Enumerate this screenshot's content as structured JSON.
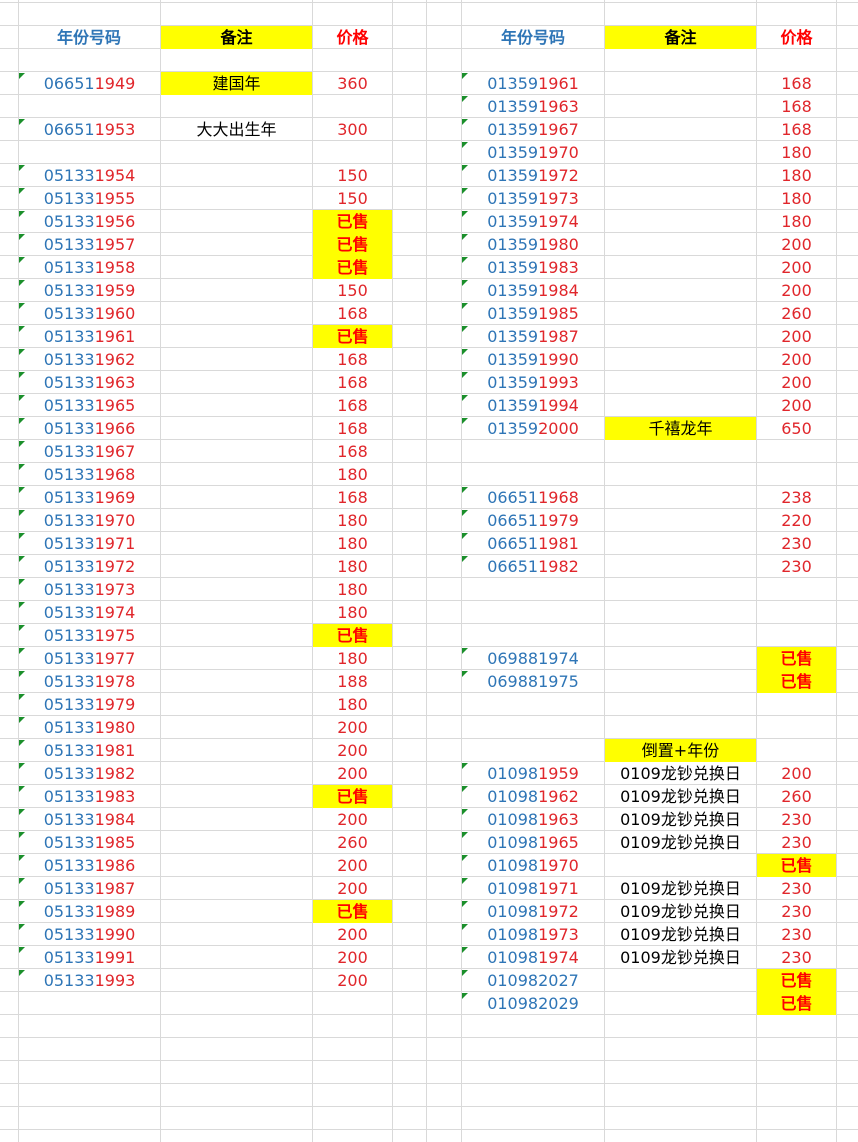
{
  "headers": {
    "left": {
      "number": "年份号码",
      "note": "备注",
      "price": "价格"
    },
    "right": {
      "number": "年份号码",
      "note": "备注",
      "price": "价格"
    }
  },
  "colors": {
    "prefix": "#2e75b6",
    "year": "#e0262b",
    "highlight": "#ffff00",
    "sold": "#ff0000",
    "grid": "#d9d9d9",
    "marker": "#1b8f2b"
  },
  "left_rows": [
    {
      "row": 4,
      "pre": "06651",
      "yr": "1949",
      "note": "建国年",
      "note_hl": true,
      "price": "360"
    },
    {
      "row": 6,
      "pre": "06651",
      "yr": "1953",
      "note": "大大出生年",
      "price": "300"
    },
    {
      "row": 8,
      "pre": "05133",
      "yr": "1954",
      "price": "150"
    },
    {
      "row": 9,
      "pre": "05133",
      "yr": "1955",
      "price": "150"
    },
    {
      "row": 10,
      "pre": "05133",
      "yr": "1956",
      "price": "已售",
      "sold": true
    },
    {
      "row": 11,
      "pre": "05133",
      "yr": "1957",
      "price": "已售",
      "sold": true
    },
    {
      "row": 12,
      "pre": "05133",
      "yr": "1958",
      "price": "已售",
      "sold": true
    },
    {
      "row": 13,
      "pre": "05133",
      "yr": "1959",
      "price": "150"
    },
    {
      "row": 14,
      "pre": "05133",
      "yr": "1960",
      "price": "168"
    },
    {
      "row": 15,
      "pre": "05133",
      "yr": "1961",
      "price": "已售",
      "sold": true
    },
    {
      "row": 16,
      "pre": "05133",
      "yr": "1962",
      "price": "168"
    },
    {
      "row": 17,
      "pre": "05133",
      "yr": "1963",
      "price": "168"
    },
    {
      "row": 18,
      "pre": "05133",
      "yr": "1965",
      "price": "168"
    },
    {
      "row": 19,
      "pre": "05133",
      "yr": "1966",
      "price": "168"
    },
    {
      "row": 20,
      "pre": "05133",
      "yr": "1967",
      "price": "168"
    },
    {
      "row": 21,
      "pre": "05133",
      "yr": "1968",
      "price": "180"
    },
    {
      "row": 22,
      "pre": "05133",
      "yr": "1969",
      "price": "168"
    },
    {
      "row": 23,
      "pre": "05133",
      "yr": "1970",
      "price": "180"
    },
    {
      "row": 24,
      "pre": "05133",
      "yr": "1971",
      "price": "180"
    },
    {
      "row": 25,
      "pre": "05133",
      "yr": "1972",
      "price": "180"
    },
    {
      "row": 26,
      "pre": "05133",
      "yr": "1973",
      "price": "180"
    },
    {
      "row": 27,
      "pre": "05133",
      "yr": "1974",
      "price": "180"
    },
    {
      "row": 28,
      "pre": "05133",
      "yr": "1975",
      "price": "已售",
      "sold": true
    },
    {
      "row": 29,
      "pre": "05133",
      "yr": "1977",
      "price": "180"
    },
    {
      "row": 30,
      "pre": "05133",
      "yr": "1978",
      "price": "188"
    },
    {
      "row": 31,
      "pre": "05133",
      "yr": "1979",
      "price": "180"
    },
    {
      "row": 32,
      "pre": "05133",
      "yr": "1980",
      "price": "200"
    },
    {
      "row": 33,
      "pre": "05133",
      "yr": "1981",
      "price": "200"
    },
    {
      "row": 34,
      "pre": "05133",
      "yr": "1982",
      "price": "200"
    },
    {
      "row": 35,
      "pre": "05133",
      "yr": "1983",
      "price": "已售",
      "sold": true
    },
    {
      "row": 36,
      "pre": "05133",
      "yr": "1984",
      "price": "200"
    },
    {
      "row": 37,
      "pre": "05133",
      "yr": "1985",
      "price": "260"
    },
    {
      "row": 38,
      "pre": "05133",
      "yr": "1986",
      "price": "200"
    },
    {
      "row": 39,
      "pre": "05133",
      "yr": "1987",
      "price": "200"
    },
    {
      "row": 40,
      "pre": "05133",
      "yr": "1989",
      "price": "已售",
      "sold": true
    },
    {
      "row": 41,
      "pre": "05133",
      "yr": "1990",
      "price": "200"
    },
    {
      "row": 42,
      "pre": "05133",
      "yr": "1991",
      "price": "200"
    },
    {
      "row": 43,
      "pre": "05133",
      "yr": "1993",
      "price": "200"
    }
  ],
  "right_rows": [
    {
      "row": 4,
      "pre": "01359",
      "yr": "1961",
      "price": "168"
    },
    {
      "row": 5,
      "pre": "01359",
      "yr": "1963",
      "price": "168"
    },
    {
      "row": 6,
      "pre": "01359",
      "yr": "1967",
      "price": "168"
    },
    {
      "row": 7,
      "pre": "01359",
      "yr": "1970",
      "price": "180"
    },
    {
      "row": 8,
      "pre": "01359",
      "yr": "1972",
      "price": "180"
    },
    {
      "row": 9,
      "pre": "01359",
      "yr": "1973",
      "price": "180"
    },
    {
      "row": 10,
      "pre": "01359",
      "yr": "1974",
      "price": "180"
    },
    {
      "row": 11,
      "pre": "01359",
      "yr": "1980",
      "price": "200"
    },
    {
      "row": 12,
      "pre": "01359",
      "yr": "1983",
      "price": "200"
    },
    {
      "row": 13,
      "pre": "01359",
      "yr": "1984",
      "price": "200"
    },
    {
      "row": 14,
      "pre": "01359",
      "yr": "1985",
      "price": "260"
    },
    {
      "row": 15,
      "pre": "01359",
      "yr": "1987",
      "price": "200"
    },
    {
      "row": 16,
      "pre": "01359",
      "yr": "1990",
      "price": "200"
    },
    {
      "row": 17,
      "pre": "01359",
      "yr": "1993",
      "price": "200"
    },
    {
      "row": 18,
      "pre": "01359",
      "yr": "1994",
      "price": "200"
    },
    {
      "row": 19,
      "pre": "01359",
      "yr": "2000",
      "note": "千禧龙年",
      "note_hl": true,
      "price": "650"
    },
    {
      "row": 22,
      "pre": "06651",
      "yr": "1968",
      "price": "238"
    },
    {
      "row": 23,
      "pre": "06651",
      "yr": "1979",
      "price": "220"
    },
    {
      "row": 24,
      "pre": "06651",
      "yr": "1981",
      "price": "230"
    },
    {
      "row": 25,
      "pre": "06651",
      "yr": "1982",
      "price": "230"
    },
    {
      "row": 29,
      "pre": "069881974",
      "yr": "",
      "price": "已售",
      "sold": true
    },
    {
      "row": 30,
      "pre": "069881975",
      "yr": "",
      "price": "已售",
      "sold": true
    },
    {
      "row": 33,
      "note": "倒置+年份",
      "note_hl": true,
      "nomarker": true
    },
    {
      "row": 34,
      "pre": "01098",
      "yr": "1959",
      "note": "0109龙钞兑换日",
      "price": "200"
    },
    {
      "row": 35,
      "pre": "01098",
      "yr": "1962",
      "note": "0109龙钞兑换日",
      "price": "260"
    },
    {
      "row": 36,
      "pre": "01098",
      "yr": "1963",
      "note": "0109龙钞兑换日",
      "price": "230"
    },
    {
      "row": 37,
      "pre": "01098",
      "yr": "1965",
      "note": "0109龙钞兑换日",
      "price": "230"
    },
    {
      "row": 38,
      "pre": "01098",
      "yr": "1970",
      "price": "已售",
      "sold": true
    },
    {
      "row": 39,
      "pre": "01098",
      "yr": "1971",
      "note": "0109龙钞兑换日",
      "price": "230"
    },
    {
      "row": 40,
      "pre": "01098",
      "yr": "1972",
      "note": "0109龙钞兑换日",
      "price": "230"
    },
    {
      "row": 41,
      "pre": "01098",
      "yr": "1973",
      "note": "0109龙钞兑换日",
      "price": "230"
    },
    {
      "row": 42,
      "pre": "01098",
      "yr": "1974",
      "note": "0109龙钞兑换日",
      "price": "230"
    },
    {
      "row": 43,
      "pre": "010982027",
      "yr": "",
      "price": "已售",
      "sold": true
    },
    {
      "row": 44,
      "pre": "010982029",
      "yr": "",
      "price": "已售",
      "sold": true
    }
  ]
}
